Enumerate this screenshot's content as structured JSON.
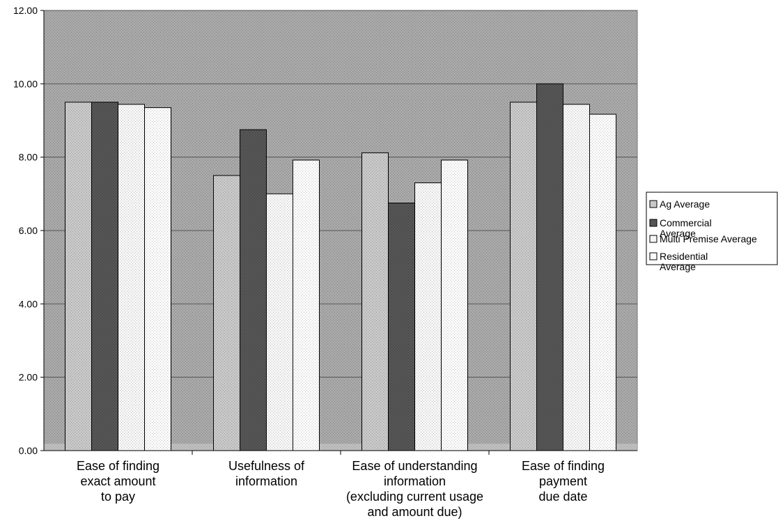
{
  "chart_data": {
    "type": "bar",
    "title": "",
    "xlabel": "",
    "ylabel": "",
    "ylim": [
      0,
      12
    ],
    "y_ticks": [
      "0.00",
      "2.00",
      "4.00",
      "6.00",
      "8.00",
      "10.00",
      "12.00"
    ],
    "grid": true,
    "legend_position": "right",
    "categories": [
      [
        "Ease of finding",
        "exact amount",
        "to pay"
      ],
      [
        "Usefulness of",
        "information"
      ],
      [
        "Ease of understanding",
        "information",
        "(excluding current usage",
        "and amount due)"
      ],
      [
        "Ease of finding",
        "payment",
        "due date"
      ]
    ],
    "series": [
      {
        "name": [
          "Ag Average"
        ],
        "color": "#c8c8c8",
        "values": [
          9.5,
          7.5,
          8.12,
          9.5
        ]
      },
      {
        "name": [
          "Commercial",
          "Average"
        ],
        "color": "#555555",
        "values": [
          9.5,
          8.75,
          6.75,
          10.0
        ]
      },
      {
        "name": [
          "Multi Premise Average"
        ],
        "color": "#f6f6f6",
        "values": [
          9.44,
          7.0,
          7.3,
          9.44
        ]
      },
      {
        "name": [
          "Residential",
          "Average"
        ],
        "color": "#fbfbfb",
        "values": [
          9.35,
          7.92,
          7.92,
          9.17
        ]
      }
    ],
    "plot_background": "#a9a9a9"
  }
}
